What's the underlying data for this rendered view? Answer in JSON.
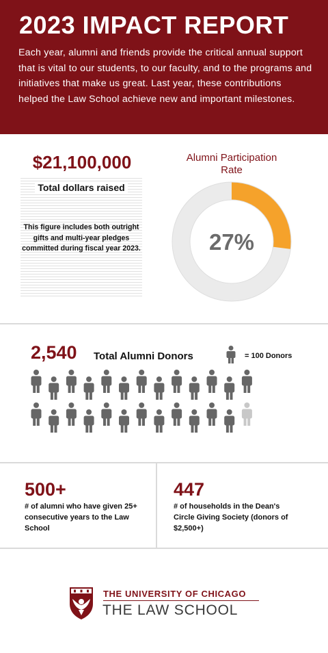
{
  "header": {
    "title": "2023 IMPACT REPORT",
    "intro": "Each year, alumni and friends provide the critical annual support that is vital to our students, to our faculty, and to the programs and initiatives that make us great. Last year, these contributions helped the Law School achieve new and important milestones."
  },
  "dollars": {
    "amount": "$21,100,000",
    "label": "Total dollars raised",
    "note": "This figure includes both outright gifts and multi-year pledges committed during fiscal year 2023."
  },
  "participation": {
    "title": "Alumni Participation Rate",
    "value_text": "27%",
    "fraction": 0.27,
    "fill_color": "#f5a22b",
    "track_color": "#ebebeb"
  },
  "donors": {
    "count": "2,540",
    "label": "Total Alumni Donors",
    "legend": "= 100 Donors",
    "icon_total": 26,
    "icon_filled": 25,
    "icon_color": "#666666",
    "icon_faded_color": "#c8c8c8"
  },
  "stats": [
    {
      "number": "500+",
      "description": "# of alumni who have given 25+ consecutive years to the Law School"
    },
    {
      "number": "447",
      "description": "# of households in the Dean's Circle Giving Society (donors of $2,500+)"
    }
  ],
  "footer": {
    "university": "THE UNIVERSITY OF CHICAGO",
    "school": "THE LAW SCHOOL",
    "logo_icon": "phoenix-shield-icon"
  },
  "colors": {
    "brand": "#7f1218",
    "accent": "#f5a22b"
  }
}
